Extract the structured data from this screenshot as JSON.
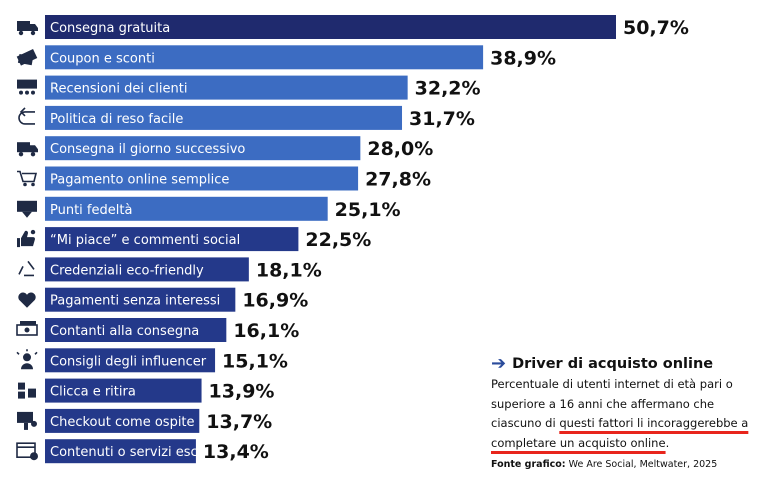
{
  "chart_data": {
    "type": "bar",
    "orientation": "horizontal",
    "categories": [
      "Consegna gratuita",
      "Coupon e sconti",
      "Recensioni dei clienti",
      "Politica di reso facile",
      "Consegna il giorno successivo",
      "Pagamento online semplice",
      "Punti fedeltà",
      "“Mi piace” e commenti social",
      "Credenziali eco-friendly",
      "Pagamenti senza interessi",
      "Contanti alla consegna",
      "Consigli degli influencer",
      "Clicca e ritira",
      "Checkout come ospite",
      "Contenuti o servizi esclusivi"
    ],
    "values": [
      50.7,
      38.9,
      32.2,
      31.7,
      28.0,
      27.8,
      25.1,
      22.5,
      18.1,
      16.9,
      16.1,
      15.1,
      13.9,
      13.7,
      13.4
    ],
    "value_labels": [
      "50,7%",
      "38,9%",
      "32,2%",
      "31,7%",
      "28,0%",
      "27,8%",
      "25,1%",
      "22,5%",
      "18,1%",
      "16,9%",
      "16,1%",
      "15,1%",
      "13,9%",
      "13,7%",
      "13,4%"
    ],
    "icons": [
      "free-delivery-truck-icon",
      "coupon-icon",
      "review-stars-icon",
      "return-arrow-icon",
      "h24-delivery-truck-icon",
      "shopping-cart-icon",
      "loyalty-card-icon",
      "thumbs-up-icon",
      "recycle-icon",
      "heart-percent-icon",
      "cash-icon",
      "influencer-icon",
      "click-collect-icon",
      "guest-checkout-icon",
      "exclusive-content-icon"
    ],
    "colors": {
      "first_bar": "#1f2a6e",
      "top_bars": "#3c6cc2",
      "bottom_bars": "#24398a"
    },
    "xlim": [
      0,
      50.7
    ],
    "grid": false,
    "legend": "none"
  },
  "info": {
    "arrow_icon": "right-arrow-icon",
    "title": "Driver di acquisto online",
    "desc_before": "Percentuale di utenti internet di età pari o superiore a 16 anni che affermano che ciascuno di ",
    "desc_underlined": "questi fattori li incoraggerebbe a completare un acquisto online",
    "desc_after": ".",
    "source_label": "Fonte grafico:",
    "source_text": " We Are Social, Meltwater, 2025",
    "underline_color": "#e8251c"
  }
}
